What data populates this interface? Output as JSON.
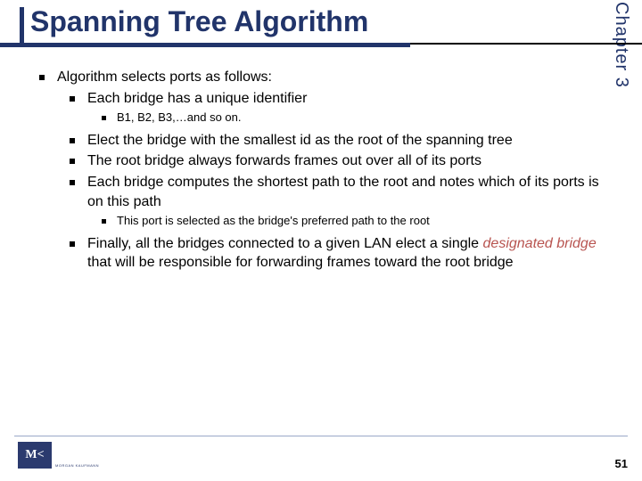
{
  "chapter": "Chapter 3",
  "title": "Spanning Tree Algorithm",
  "page_number": "51",
  "logo": {
    "mark": "M<",
    "publisher": "MORGAN KAUFMANN"
  },
  "colors": {
    "primary": "#21346a",
    "accent": "#b85450",
    "text": "#000000",
    "footer_line": "#9aa8c8"
  },
  "content": {
    "l1": "Algorithm selects ports as follows:",
    "l2_1": "Each bridge has a unique identifier",
    "l3_1": "B1, B2, B3,…and so on.",
    "l2_2": "Elect the bridge with the smallest id as the root of the spanning tree",
    "l2_3": "The root bridge always forwards frames out over all of its ports",
    "l2_4": "Each bridge computes the shortest path to the root and notes which of its ports is on this path",
    "l3_2": "This port is selected as the bridge's preferred path to the root",
    "l2_5_a": "Finally, all the bridges connected to a given LAN elect a single ",
    "l2_5_b": "designated bridge",
    "l2_5_c": " that will be responsible for forwarding frames toward the root bridge"
  }
}
